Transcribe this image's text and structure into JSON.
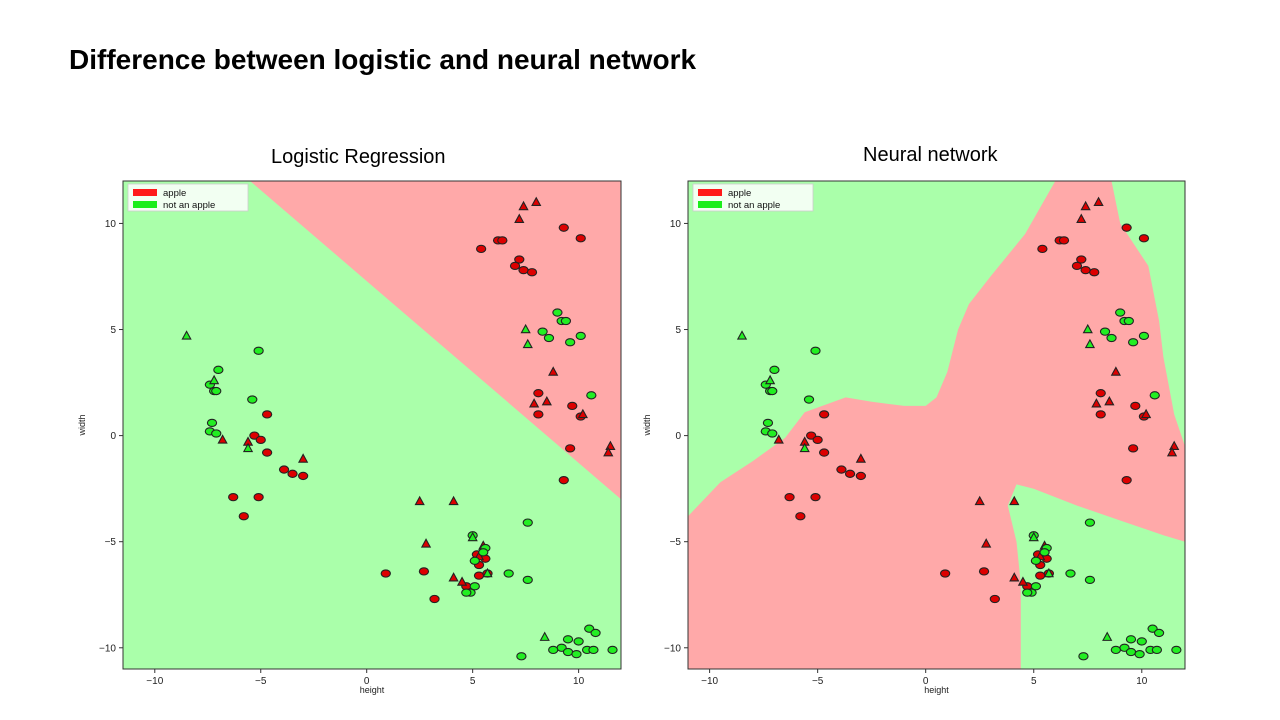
{
  "slide": {
    "title": "Difference between logistic and neural network"
  },
  "colors": {
    "apple_region": "#ffa9a9",
    "other_region": "#aaffaa",
    "apple_marker": "#dd0000",
    "other_marker": "#22ee22"
  },
  "chart_data": [
    {
      "type": "scatter",
      "title": "Logistic Regression",
      "xlabel": "height",
      "ylabel": "width",
      "xlim": [
        -11.5,
        12
      ],
      "ylim": [
        -11,
        12
      ],
      "xticks": [
        -10,
        -5,
        0,
        5,
        10
      ],
      "yticks": [
        -10,
        -5,
        0,
        5,
        10
      ],
      "tick_labels_x": [
        "−10",
        "−5",
        "0",
        "5",
        "10"
      ],
      "tick_labels_y": [
        "−10",
        "−5",
        "0",
        "5",
        "10"
      ],
      "legend": {
        "position": "top-left",
        "entries": [
          "apple",
          "not an apple"
        ]
      },
      "decision_region": {
        "class": "apple",
        "polygon": [
          [
            -5.5,
            12
          ],
          [
            12,
            12
          ],
          [
            12,
            -3
          ],
          [
            -5.5,
            12
          ]
        ]
      },
      "series": [
        {
          "name": "apple",
          "circles": [
            [
              5.4,
              8.8
            ],
            [
              6.2,
              9.2
            ],
            [
              6.4,
              9.2
            ],
            [
              7.2,
              8.3
            ],
            [
              7,
              8
            ],
            [
              7.4,
              7.8
            ],
            [
              7.8,
              7.7
            ],
            [
              9.3,
              9.8
            ],
            [
              10.1,
              9.3
            ],
            [
              8.1,
              2
            ],
            [
              8.1,
              1
            ],
            [
              9.7,
              1.4
            ],
            [
              10.1,
              0.9
            ],
            [
              9.6,
              -0.6
            ],
            [
              9.3,
              -2.1
            ],
            [
              -4.7,
              1
            ],
            [
              -5.3,
              0
            ],
            [
              -5,
              -0.2
            ],
            [
              -4.7,
              -0.8
            ],
            [
              -3.5,
              -1.8
            ],
            [
              -3.9,
              -1.6
            ],
            [
              -3,
              -1.9
            ],
            [
              -6.3,
              -2.9
            ],
            [
              -5.1,
              -2.9
            ],
            [
              -5.8,
              -3.8
            ],
            [
              0.9,
              -6.5
            ],
            [
              2.7,
              -6.4
            ],
            [
              5.2,
              -5.6
            ],
            [
              5.3,
              -6.1
            ],
            [
              5.6,
              -5.8
            ],
            [
              5.3,
              -6.6
            ],
            [
              5.7,
              -6.5
            ],
            [
              4.7,
              -7.1
            ],
            [
              3.2,
              -7.7
            ]
          ],
          "triangles": [
            [
              7.4,
              10.8
            ],
            [
              8,
              11
            ],
            [
              7.2,
              10.2
            ],
            [
              8.8,
              3
            ],
            [
              7.9,
              1.5
            ],
            [
              8.5,
              1.6
            ],
            [
              10.2,
              1
            ],
            [
              11.5,
              -0.5
            ],
            [
              11.4,
              -0.8
            ],
            [
              -5.6,
              -0.3
            ],
            [
              -3,
              -1.1
            ],
            [
              -6.8,
              -0.2
            ],
            [
              2.5,
              -3.1
            ],
            [
              4.1,
              -3.1
            ],
            [
              2.8,
              -5.1
            ],
            [
              5.5,
              -5.2
            ],
            [
              5.3,
              -5.7
            ],
            [
              4.1,
              -6.7
            ],
            [
              4.5,
              -6.9
            ]
          ]
        },
        {
          "name": "not an apple",
          "circles": [
            [
              9,
              5.8
            ],
            [
              9.2,
              5.4
            ],
            [
              9.4,
              5.4
            ],
            [
              10.1,
              4.7
            ],
            [
              9.6,
              4.4
            ],
            [
              8.6,
              4.6
            ],
            [
              8.3,
              4.9
            ],
            [
              -7.4,
              2.4
            ],
            [
              -7,
              3.1
            ],
            [
              -7.2,
              2.1
            ],
            [
              -7.1,
              2.1
            ],
            [
              -7.3,
              0.6
            ],
            [
              -7.4,
              0.2
            ],
            [
              -7.1,
              0.1
            ],
            [
              -5.1,
              4
            ],
            [
              -5.4,
              1.7
            ],
            [
              10.6,
              1.9
            ],
            [
              7.6,
              -4.1
            ],
            [
              5,
              -4.7
            ],
            [
              5.6,
              -5.3
            ],
            [
              5.5,
              -5.5
            ],
            [
              5.1,
              -5.9
            ],
            [
              6.7,
              -6.5
            ],
            [
              7.6,
              -6.8
            ],
            [
              5.1,
              -7.1
            ],
            [
              4.9,
              -7.4
            ],
            [
              4.7,
              -7.4
            ],
            [
              10.5,
              -9.1
            ],
            [
              10.8,
              -9.3
            ],
            [
              10,
              -9.7
            ],
            [
              9.5,
              -9.6
            ],
            [
              9.2,
              -10
            ],
            [
              8.8,
              -10.1
            ],
            [
              9.5,
              -10.2
            ],
            [
              9.9,
              -10.3
            ],
            [
              10.4,
              -10.1
            ],
            [
              10.7,
              -10.1
            ],
            [
              11.6,
              -10.1
            ],
            [
              7.3,
              -10.4
            ]
          ],
          "triangles": [
            [
              -8.5,
              4.7
            ],
            [
              -7.2,
              2.6
            ],
            [
              -5.6,
              -0.6
            ],
            [
              7.5,
              5
            ],
            [
              7.6,
              4.3
            ],
            [
              5,
              -4.8
            ],
            [
              5.7,
              -6.5
            ],
            [
              8.4,
              -9.5
            ]
          ]
        }
      ]
    },
    {
      "type": "scatter",
      "title": "Neural network",
      "xlabel": "height",
      "ylabel": "width",
      "xlim": [
        -11,
        12
      ],
      "ylim": [
        -11,
        12
      ],
      "xticks": [
        -10,
        -5,
        0,
        5,
        10
      ],
      "yticks": [
        -10,
        -5,
        0,
        5,
        10
      ],
      "tick_labels_x": [
        "−10",
        "−5",
        "0",
        "5",
        "10"
      ],
      "tick_labels_y": [
        "−10",
        "−5",
        "0",
        "5",
        "10"
      ],
      "legend": {
        "position": "top-left",
        "entries": [
          "apple",
          "not an apple"
        ]
      },
      "decision_region": {
        "class": "apple",
        "polygon": [
          [
            -11,
            -3.8
          ],
          [
            -9.5,
            -2.2
          ],
          [
            -8,
            -1.2
          ],
          [
            -6.5,
            -0.1
          ],
          [
            -5.6,
            1.1
          ],
          [
            -3.7,
            1.8
          ],
          [
            -2.5,
            1.6
          ],
          [
            -1,
            1.4
          ],
          [
            0,
            1.4
          ],
          [
            0.5,
            1.8
          ],
          [
            1,
            3
          ],
          [
            1.5,
            5
          ],
          [
            2,
            6.2
          ],
          [
            3,
            7.5
          ],
          [
            4.6,
            9.5
          ],
          [
            6,
            12
          ],
          [
            8.6,
            12
          ],
          [
            9,
            10
          ],
          [
            10.3,
            8
          ],
          [
            10.8,
            5.4
          ],
          [
            11,
            3.7
          ],
          [
            11.5,
            1
          ],
          [
            12,
            -0.5
          ],
          [
            12,
            -5
          ],
          [
            11,
            -4.7
          ],
          [
            9,
            -4
          ],
          [
            7,
            -3.3
          ],
          [
            5,
            -2.5
          ],
          [
            4.2,
            -2.3
          ],
          [
            3.8,
            -3.3
          ],
          [
            4.2,
            -5
          ],
          [
            4.4,
            -7
          ],
          [
            4.4,
            -11
          ],
          [
            -11,
            -11
          ],
          [
            -11,
            -3.8
          ]
        ]
      },
      "series": [
        {
          "name": "apple",
          "circles": [
            [
              5.4,
              8.8
            ],
            [
              6.2,
              9.2
            ],
            [
              6.4,
              9.2
            ],
            [
              7.2,
              8.3
            ],
            [
              7,
              8
            ],
            [
              7.4,
              7.8
            ],
            [
              7.8,
              7.7
            ],
            [
              9.3,
              9.8
            ],
            [
              10.1,
              9.3
            ],
            [
              8.1,
              2
            ],
            [
              8.1,
              1
            ],
            [
              9.7,
              1.4
            ],
            [
              10.1,
              0.9
            ],
            [
              9.6,
              -0.6
            ],
            [
              9.3,
              -2.1
            ],
            [
              -4.7,
              1
            ],
            [
              -5.3,
              0
            ],
            [
              -5,
              -0.2
            ],
            [
              -4.7,
              -0.8
            ],
            [
              -3.5,
              -1.8
            ],
            [
              -3.9,
              -1.6
            ],
            [
              -3,
              -1.9
            ],
            [
              -6.3,
              -2.9
            ],
            [
              -5.1,
              -2.9
            ],
            [
              -5.8,
              -3.8
            ],
            [
              0.9,
              -6.5
            ],
            [
              2.7,
              -6.4
            ],
            [
              5.2,
              -5.6
            ],
            [
              5.3,
              -6.1
            ],
            [
              5.6,
              -5.8
            ],
            [
              5.3,
              -6.6
            ],
            [
              5.7,
              -6.5
            ],
            [
              4.7,
              -7.1
            ],
            [
              3.2,
              -7.7
            ]
          ],
          "triangles": [
            [
              7.4,
              10.8
            ],
            [
              8,
              11
            ],
            [
              7.2,
              10.2
            ],
            [
              8.8,
              3
            ],
            [
              7.9,
              1.5
            ],
            [
              8.5,
              1.6
            ],
            [
              10.2,
              1
            ],
            [
              11.5,
              -0.5
            ],
            [
              11.4,
              -0.8
            ],
            [
              -5.6,
              -0.3
            ],
            [
              -3,
              -1.1
            ],
            [
              -6.8,
              -0.2
            ],
            [
              2.5,
              -3.1
            ],
            [
              4.1,
              -3.1
            ],
            [
              2.8,
              -5.1
            ],
            [
              5.5,
              -5.2
            ],
            [
              5.3,
              -5.7
            ],
            [
              4.1,
              -6.7
            ],
            [
              4.5,
              -6.9
            ]
          ]
        },
        {
          "name": "not an apple",
          "circles": [
            [
              9,
              5.8
            ],
            [
              9.2,
              5.4
            ],
            [
              9.4,
              5.4
            ],
            [
              10.1,
              4.7
            ],
            [
              9.6,
              4.4
            ],
            [
              8.6,
              4.6
            ],
            [
              8.3,
              4.9
            ],
            [
              -7.4,
              2.4
            ],
            [
              -7,
              3.1
            ],
            [
              -7.2,
              2.1
            ],
            [
              -7.1,
              2.1
            ],
            [
              -7.3,
              0.6
            ],
            [
              -7.4,
              0.2
            ],
            [
              -7.1,
              0.1
            ],
            [
              -5.1,
              4
            ],
            [
              -5.4,
              1.7
            ],
            [
              10.6,
              1.9
            ],
            [
              7.6,
              -4.1
            ],
            [
              5,
              -4.7
            ],
            [
              5.6,
              -5.3
            ],
            [
              5.5,
              -5.5
            ],
            [
              5.1,
              -5.9
            ],
            [
              6.7,
              -6.5
            ],
            [
              7.6,
              -6.8
            ],
            [
              5.1,
              -7.1
            ],
            [
              4.9,
              -7.4
            ],
            [
              4.7,
              -7.4
            ],
            [
              10.5,
              -9.1
            ],
            [
              10.8,
              -9.3
            ],
            [
              10,
              -9.7
            ],
            [
              9.5,
              -9.6
            ],
            [
              9.2,
              -10
            ],
            [
              8.8,
              -10.1
            ],
            [
              9.5,
              -10.2
            ],
            [
              9.9,
              -10.3
            ],
            [
              10.4,
              -10.1
            ],
            [
              10.7,
              -10.1
            ],
            [
              11.6,
              -10.1
            ],
            [
              7.3,
              -10.4
            ]
          ],
          "triangles": [
            [
              -8.5,
              4.7
            ],
            [
              -7.2,
              2.6
            ],
            [
              -5.6,
              -0.6
            ],
            [
              7.5,
              5
            ],
            [
              7.6,
              4.3
            ],
            [
              5,
              -4.8
            ],
            [
              5.7,
              -6.5
            ],
            [
              8.4,
              -9.5
            ]
          ]
        }
      ]
    }
  ]
}
